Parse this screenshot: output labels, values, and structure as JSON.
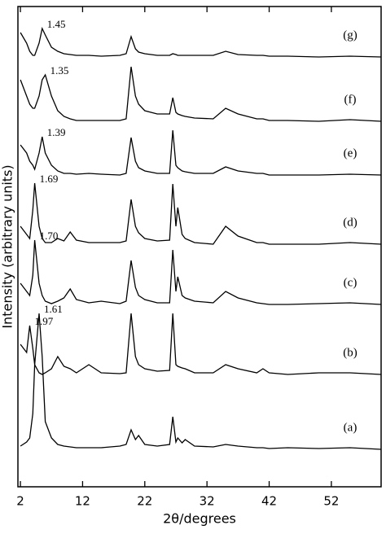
{
  "chart_data": {
    "type": "line",
    "x_label": "2θ/degrees",
    "y_label": "Intensity (arbitrary units)",
    "xlim": [
      1.6,
      60
    ],
    "xticks": [
      2,
      12,
      22,
      32,
      42,
      52
    ],
    "ylim": [
      0,
      590
    ],
    "x": [
      2,
      3,
      3.5,
      4,
      4.3,
      5,
      5.5,
      6,
      7,
      8,
      9,
      10,
      11,
      13,
      15,
      18,
      19,
      19.8,
      20.5,
      21,
      22,
      24,
      26,
      26.5,
      27,
      27.3,
      28,
      28.5,
      30,
      33,
      35,
      37,
      40,
      41,
      42,
      45,
      50,
      55,
      60
    ],
    "series": [
      {
        "name": "(a)",
        "peak_label": "1.61",
        "color": "#000000",
        "values": [
          50,
          55,
          60,
          90,
          150,
          213,
          160,
          80,
          60,
          52,
          50,
          49,
          48,
          48,
          48,
          50,
          52,
          70,
          58,
          63,
          52,
          50,
          52,
          86,
          55,
          60,
          54,
          58,
          50,
          49,
          52,
          50,
          48,
          48,
          47,
          48,
          47,
          48,
          46
        ]
      },
      {
        "name": "(b)",
        "peak_label": "1.97",
        "color": "#000000",
        "values": [
          175,
          165,
          198,
          170,
          150,
          140,
          138,
          140,
          145,
          160,
          148,
          145,
          140,
          150,
          140,
          139,
          140,
          213,
          160,
          150,
          145,
          142,
          143,
          213,
          150,
          148,
          146,
          145,
          140,
          140,
          150,
          145,
          140,
          145,
          140,
          138,
          140,
          140,
          138
        ]
      },
      {
        "name": "(c)",
        "peak_label": "1.70",
        "color": "#000000",
        "values": [
          250,
          240,
          235,
          260,
          303,
          250,
          235,
          228,
          225,
          228,
          232,
          243,
          230,
          226,
          228,
          225,
          228,
          278,
          245,
          235,
          230,
          226,
          226,
          291,
          240,
          258,
          235,
          232,
          228,
          226,
          240,
          232,
          226,
          225,
          224,
          224,
          225,
          226,
          224
        ]
      },
      {
        "name": "(d)",
        "peak_label": "1.69",
        "color": "#000000",
        "values": [
          320,
          310,
          305,
          340,
          373,
          320,
          305,
          300,
          300,
          305,
          302,
          313,
          303,
          300,
          300,
          300,
          302,
          353,
          320,
          312,
          305,
          302,
          303,
          372,
          320,
          343,
          310,
          305,
          300,
          298,
          320,
          308,
          300,
          300,
          298,
          298,
          298,
          300,
          298
        ]
      },
      {
        "name": "(e)",
        "peak_label": "1.39",
        "color": "#000000",
        "values": [
          420,
          410,
          400,
          395,
          390,
          410,
          430,
          410,
          395,
          388,
          385,
          385,
          384,
          385,
          384,
          383,
          385,
          429,
          400,
          392,
          388,
          385,
          385,
          438,
          395,
          392,
          388,
          387,
          385,
          385,
          393,
          388,
          385,
          385,
          383,
          383,
          383,
          384,
          383
        ]
      },
      {
        "name": "(f)",
        "peak_label": "1.35",
        "color": "#000000",
        "values": [
          500,
          480,
          470,
          465,
          465,
          480,
          500,
          506,
          480,
          462,
          455,
          452,
          450,
          450,
          450,
          450,
          452,
          516,
          480,
          470,
          462,
          458,
          458,
          478,
          460,
          458,
          456,
          455,
          453,
          452,
          465,
          458,
          452,
          452,
          450,
          450,
          449,
          451,
          449
        ]
      },
      {
        "name": "(g)",
        "peak_label": "1.45",
        "color": "#000000",
        "values": [
          558,
          545,
          535,
          530,
          530,
          545,
          563,
          555,
          540,
          535,
          532,
          531,
          530,
          530,
          529,
          530,
          532,
          553,
          538,
          534,
          532,
          530,
          530,
          532,
          531,
          530,
          530,
          530,
          530,
          530,
          535,
          531,
          530,
          530,
          529,
          529,
          528,
          529,
          528
        ]
      }
    ]
  }
}
